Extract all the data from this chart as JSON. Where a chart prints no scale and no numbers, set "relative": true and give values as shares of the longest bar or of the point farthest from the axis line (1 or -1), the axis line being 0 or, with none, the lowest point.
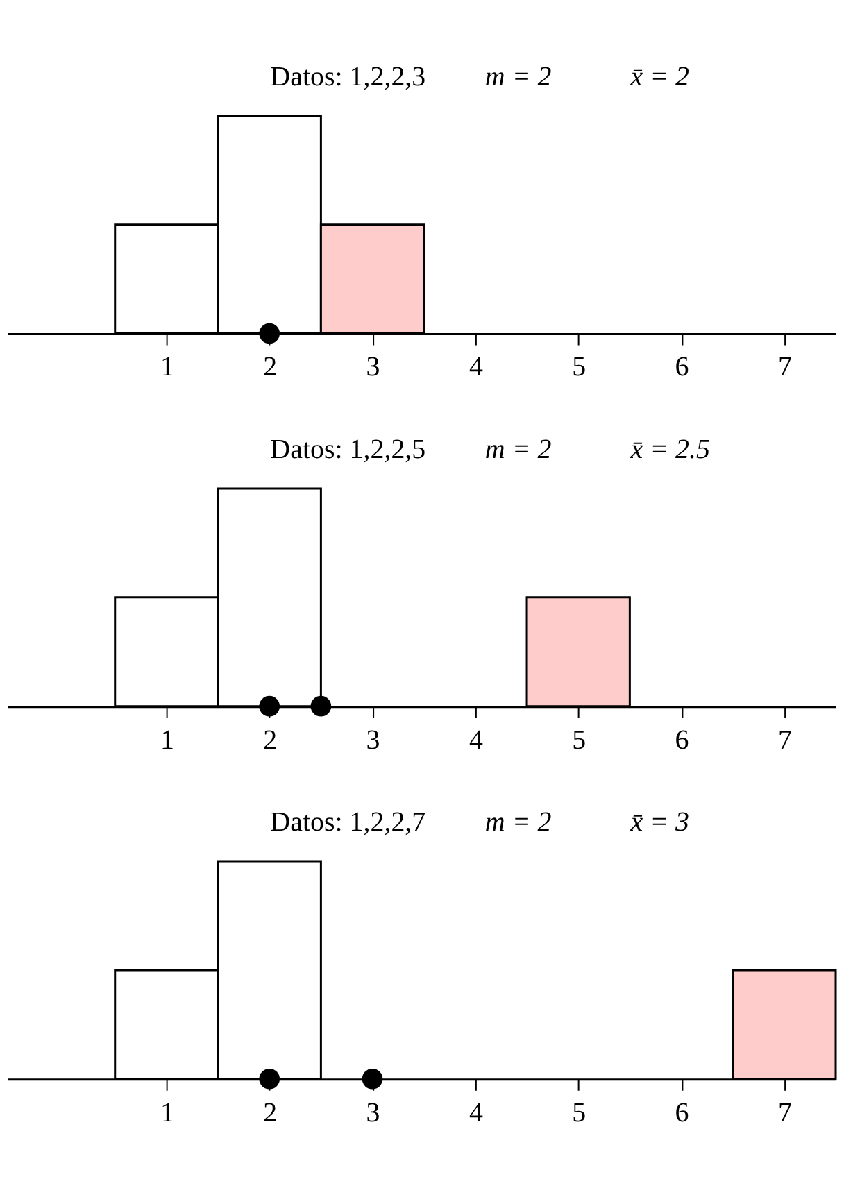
{
  "chart_data": [
    {
      "type": "bar",
      "title": "Datos: 1,2,2,3",
      "annotations": [
        "m = 2",
        "x̄ = 2"
      ],
      "relative": true,
      "xlim": [
        -0.55,
        7.5
      ],
      "xticks": [
        1,
        2,
        3,
        4,
        5,
        6,
        7
      ],
      "tick_labels": "x",
      "grid": false,
      "series": [
        {
          "type": "bar",
          "x": [
            1,
            2,
            3
          ],
          "values": [
            0.5,
            1,
            0.5
          ],
          "colors": [
            "#ffffff",
            "#ffffff",
            "#ffcccc"
          ]
        },
        {
          "type": "scatter",
          "x": [
            2
          ],
          "values": [
            0
          ],
          "color": "#000000",
          "marker": "circle"
        }
      ]
    },
    {
      "type": "bar",
      "title": "Datos: 1,2,2,5",
      "annotations": [
        "m = 2",
        "x̄ = 2.5"
      ],
      "relative": true,
      "xlim": [
        -0.55,
        7.5
      ],
      "xticks": [
        1,
        2,
        3,
        4,
        5,
        6,
        7
      ],
      "tick_labels": "x",
      "grid": false,
      "series": [
        {
          "type": "bar",
          "x": [
            1,
            2,
            5
          ],
          "values": [
            0.5,
            1,
            0.5
          ],
          "colors": [
            "#ffffff",
            "#ffffff",
            "#ffcccc"
          ]
        },
        {
          "type": "scatter",
          "x": [
            2,
            2.5
          ],
          "values": [
            0,
            0
          ],
          "color": "#000000",
          "marker": "circle"
        }
      ]
    },
    {
      "type": "bar",
      "title": "Datos: 1,2,2,7",
      "annotations": [
        "m = 2",
        "x̄ = 3"
      ],
      "relative": true,
      "xlim": [
        -0.55,
        7.5
      ],
      "xticks": [
        1,
        2,
        3,
        4,
        5,
        6,
        7
      ],
      "tick_labels": "x",
      "grid": false,
      "series": [
        {
          "type": "bar",
          "x": [
            1,
            2,
            7
          ],
          "values": [
            0.5,
            1,
            0.5
          ],
          "colors": [
            "#ffffff",
            "#ffffff",
            "#ffcccc"
          ]
        },
        {
          "type": "scatter",
          "x": [
            2,
            3
          ],
          "values": [
            0,
            0
          ],
          "color": "#000000",
          "marker": "circle"
        }
      ]
    }
  ]
}
